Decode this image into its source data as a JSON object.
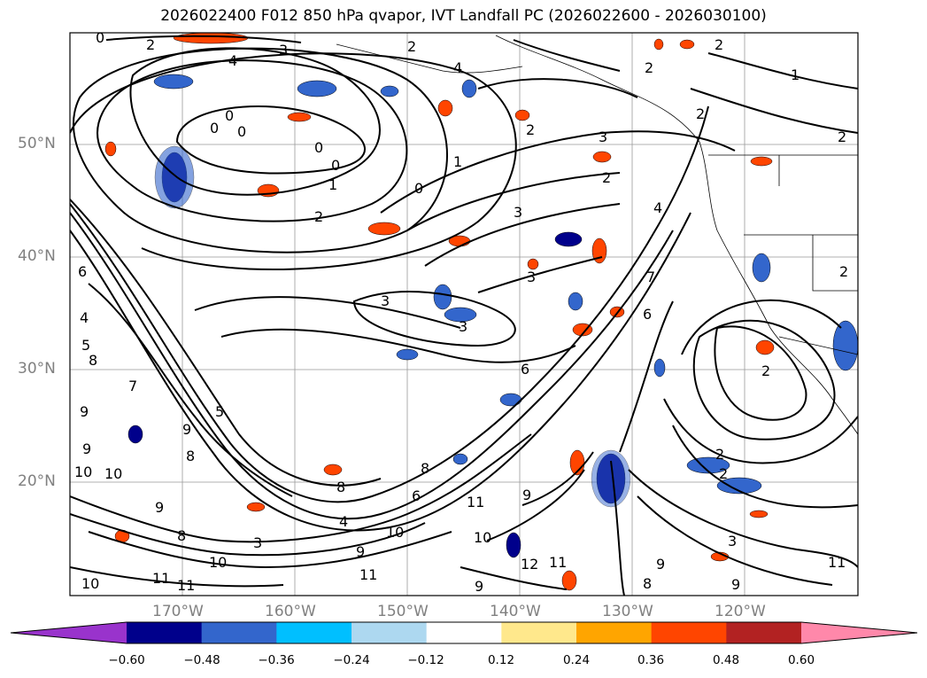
{
  "title": "2026022400 F012 850 hPa qvapor, IVT Landfall PC (2026022600 - 2026030100)",
  "map": {
    "projection": "lat-lon",
    "lon_range": [
      -180,
      -110
    ],
    "lat_range": [
      10,
      60
    ],
    "lat_labels": [
      {
        "lat": 50,
        "text": "50°N"
      },
      {
        "lat": 40,
        "text": "40°N"
      },
      {
        "lat": 30,
        "text": "30°N"
      },
      {
        "lat": 20,
        "text": "20°N"
      }
    ],
    "lon_labels": [
      {
        "lon": -170,
        "text": "170°W"
      },
      {
        "lon": -160,
        "text": "160°W"
      },
      {
        "lon": -150,
        "text": "150°W"
      },
      {
        "lon": -140,
        "text": "140°W"
      },
      {
        "lon": -130,
        "text": "130°W"
      },
      {
        "lon": -120,
        "text": "120°W"
      }
    ],
    "contour_labels": [
      "0",
      "1",
      "2",
      "3",
      "4",
      "5",
      "6",
      "7",
      "8",
      "9",
      "10",
      "11",
      "12"
    ]
  },
  "colorbar": {
    "colors": [
      "#9933cc",
      "#00008b",
      "#3366cc",
      "#00bfff",
      "#add8f0",
      "#ffffff",
      "#ffe88c",
      "#ffa500",
      "#ff4500",
      "#b22222",
      "#ff88aa"
    ],
    "tick_labels": [
      "−0.60",
      "−0.48",
      "−0.36",
      "−0.24",
      "−0.12",
      "0.12",
      "0.24",
      "0.36",
      "0.48",
      "0.60"
    ]
  }
}
